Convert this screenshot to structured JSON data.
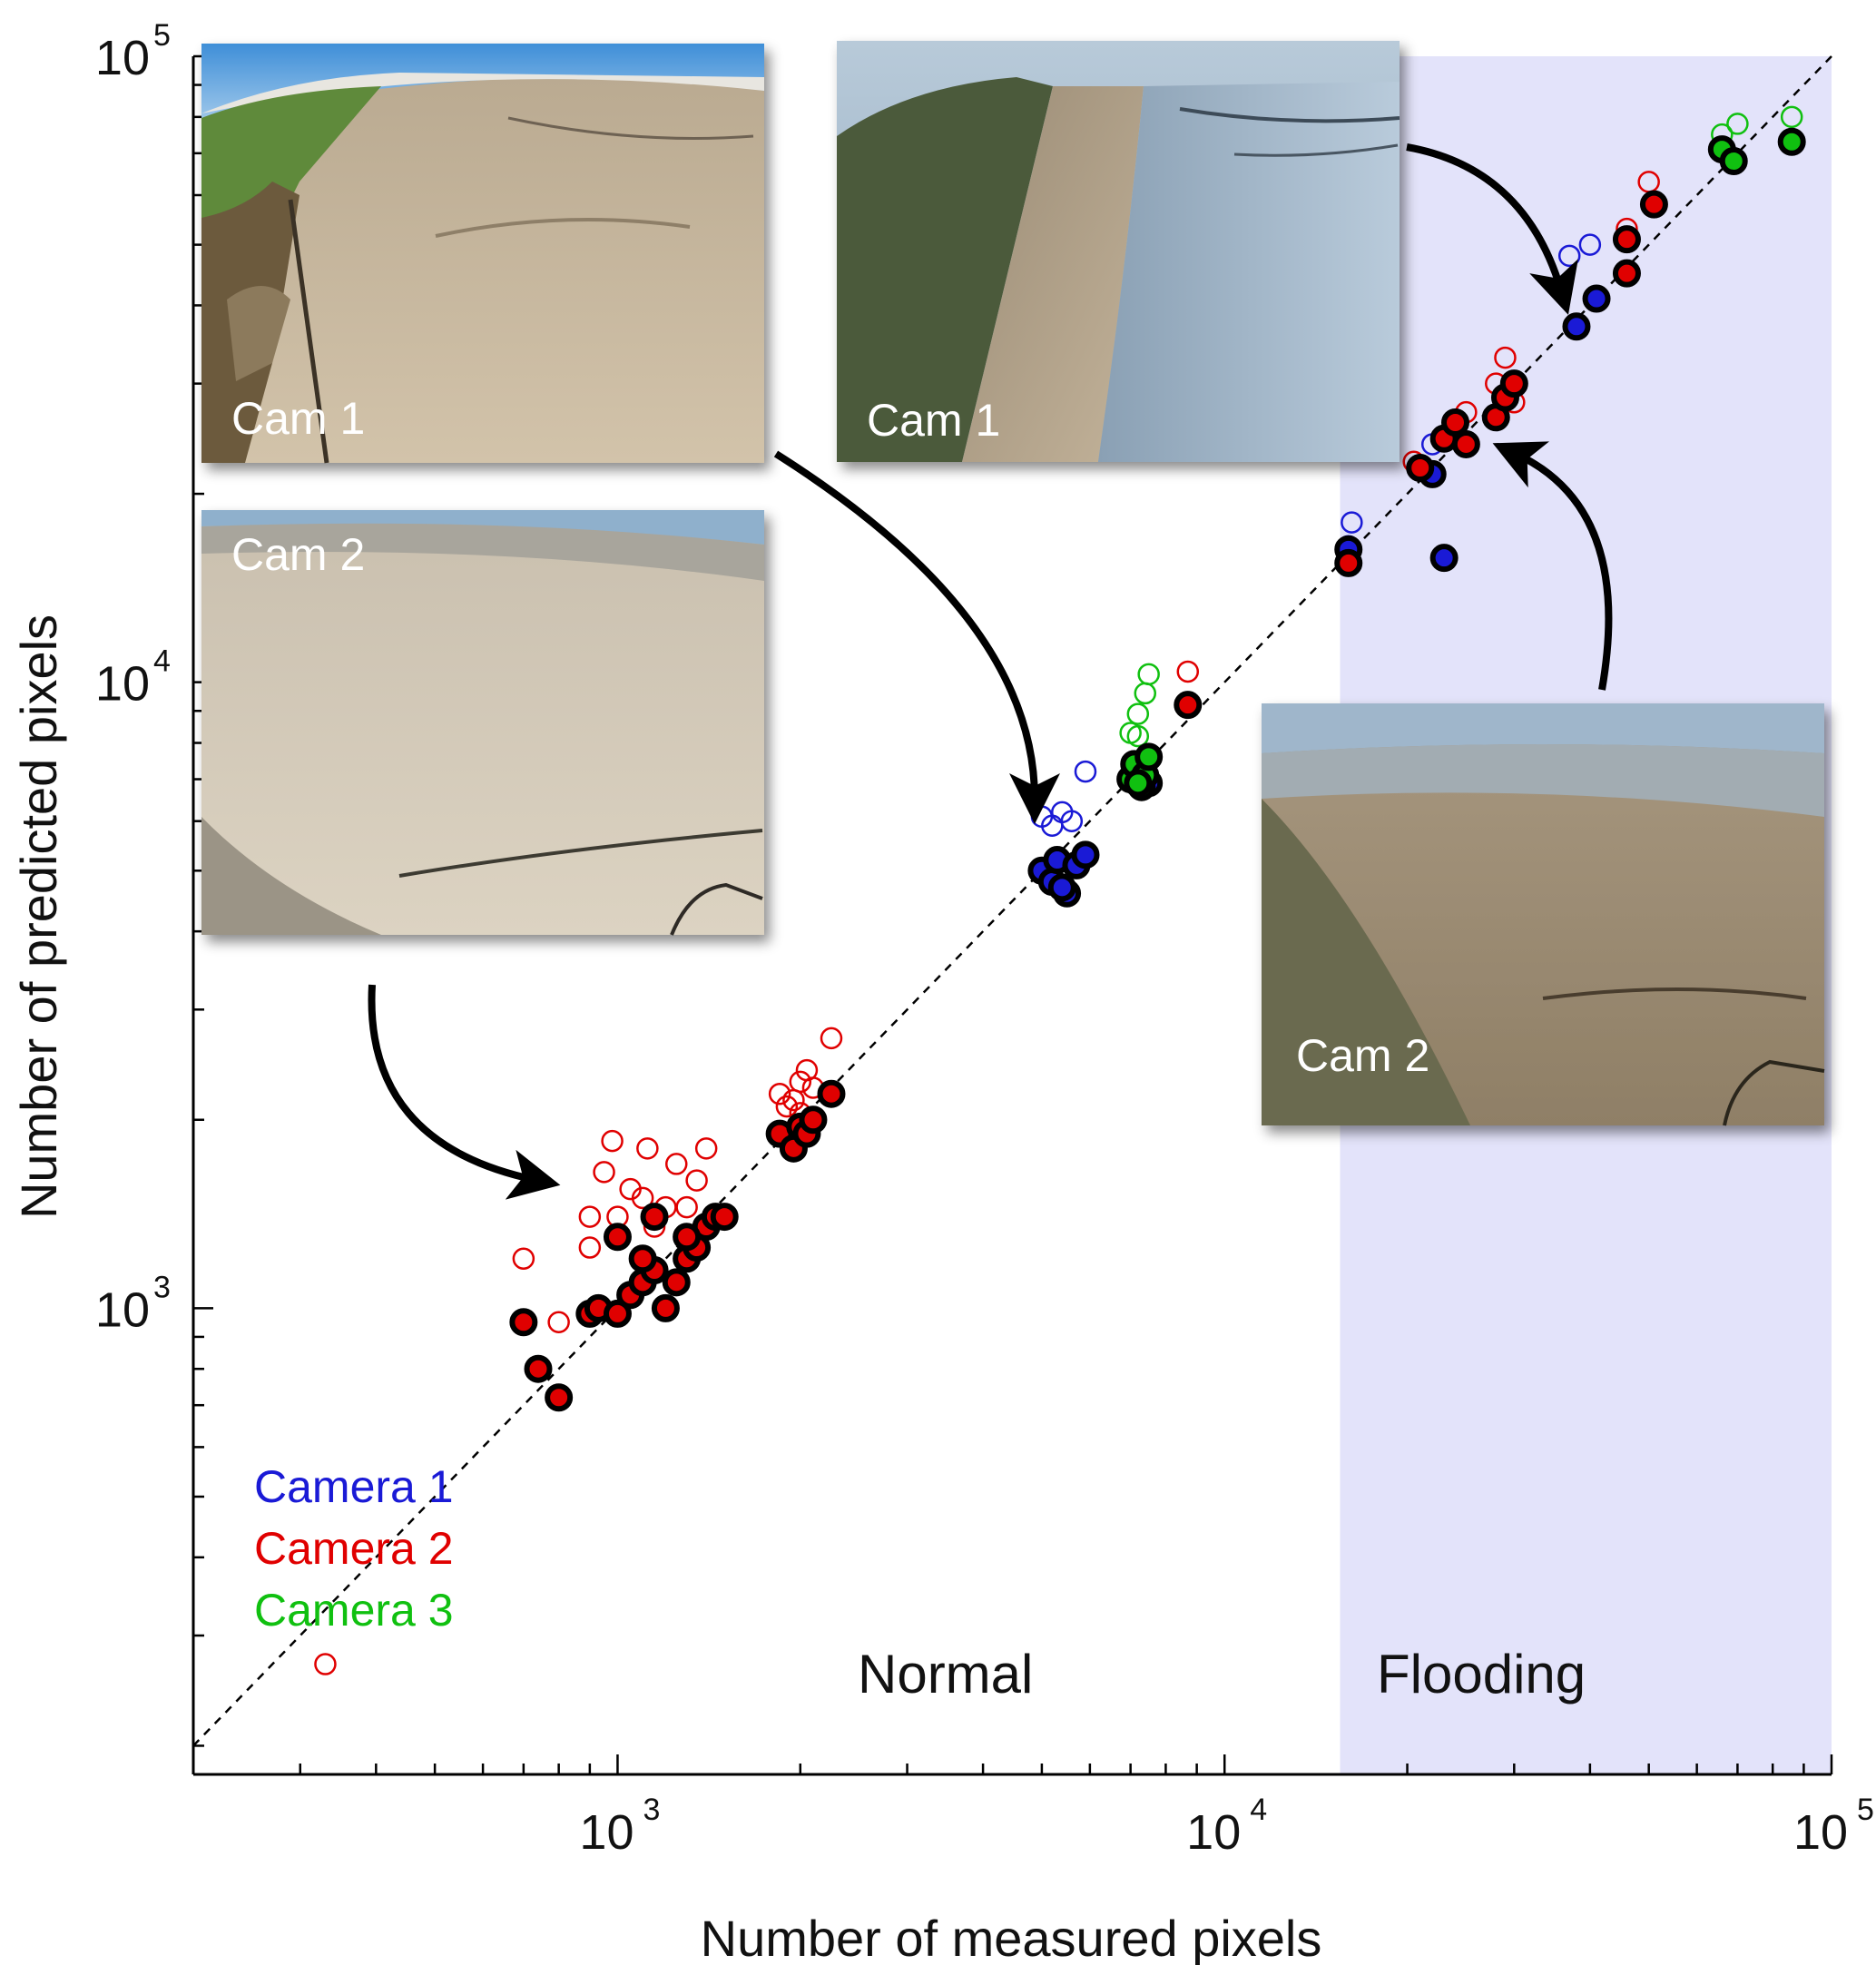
{
  "chart_data": {
    "type": "scatter",
    "xscale": "log",
    "yscale": "log",
    "xlim": [
      200,
      100000
    ],
    "ylim": [
      180,
      100000
    ],
    "xlabel": "Number of measured pixels",
    "ylabel": "Number of predicted pixels",
    "x_ticks": [
      {
        "base": "10",
        "exp": "3",
        "value": 1000
      },
      {
        "base": "10",
        "exp": "4",
        "value": 10000
      },
      {
        "base": "10",
        "exp": "5",
        "value": 100000
      }
    ],
    "y_ticks": [
      {
        "base": "10",
        "exp": "3",
        "value": 1000
      },
      {
        "base": "10",
        "exp": "4",
        "value": 10000
      },
      {
        "base": "10",
        "exp": "5",
        "value": 100000
      }
    ],
    "reference_line": "1:1 dashed",
    "flooding_region_start": 15500,
    "region_labels": {
      "normal": "Normal",
      "flooding": "Flooding"
    },
    "legend": [
      {
        "label": "Camera 1",
        "color": "#1a1ad6"
      },
      {
        "label": "Camera 2",
        "color": "#e00000"
      },
      {
        "label": "Camera 3",
        "color": "#10c010"
      }
    ],
    "series": [
      {
        "name": "Camera 1",
        "color": "#1a1ad6",
        "open": [
          [
            5000,
            6100
          ],
          [
            5200,
            5900
          ],
          [
            5400,
            6200
          ],
          [
            5600,
            6000
          ],
          [
            5900,
            7200
          ],
          [
            16200,
            18000
          ],
          [
            16000,
            16500
          ],
          [
            22000,
            24000
          ],
          [
            37000,
            48000
          ],
          [
            40000,
            50000
          ]
        ],
        "filled": [
          [
            5000,
            5000
          ],
          [
            5200,
            4800
          ],
          [
            5300,
            5200
          ],
          [
            5500,
            4600
          ],
          [
            5700,
            5100
          ],
          [
            5900,
            5300
          ],
          [
            5400,
            4700
          ],
          [
            7500,
            6900
          ],
          [
            16000,
            16300
          ],
          [
            22000,
            21500
          ],
          [
            23000,
            15800
          ],
          [
            38000,
            37000
          ],
          [
            41000,
            41000
          ]
        ]
      },
      {
        "name": "Camera 2",
        "color": "#e00000",
        "open": [
          [
            330,
            270
          ],
          [
            700,
            1200
          ],
          [
            800,
            950
          ],
          [
            900,
            1400
          ],
          [
            950,
            1650
          ],
          [
            980,
            1850
          ],
          [
            1000,
            1400
          ],
          [
            1050,
            1550
          ],
          [
            1100,
            1500
          ],
          [
            1120,
            1800
          ],
          [
            1200,
            1450
          ],
          [
            1250,
            1700
          ],
          [
            1300,
            1450
          ],
          [
            1350,
            1600
          ],
          [
            900,
            1250
          ],
          [
            1000,
            1300
          ],
          [
            1150,
            1350
          ],
          [
            1400,
            1800
          ],
          [
            1850,
            2200
          ],
          [
            1950,
            2150
          ],
          [
            2000,
            2300
          ],
          [
            2050,
            2400
          ],
          [
            2100,
            2250
          ],
          [
            1900,
            2100
          ],
          [
            2000,
            2050
          ],
          [
            2250,
            2700
          ],
          [
            8700,
            10400
          ],
          [
            20500,
            22500
          ],
          [
            24000,
            26000
          ],
          [
            25000,
            27000
          ],
          [
            28000,
            30000
          ],
          [
            30000,
            28000
          ],
          [
            29000,
            33000
          ],
          [
            46000,
            53000
          ],
          [
            50000,
            63000
          ]
        ],
        "filled": [
          [
            700,
            950
          ],
          [
            740,
            800
          ],
          [
            800,
            720
          ],
          [
            900,
            980
          ],
          [
            930,
            1000
          ],
          [
            1000,
            980
          ],
          [
            1050,
            1050
          ],
          [
            1100,
            1100
          ],
          [
            1150,
            1150
          ],
          [
            1100,
            1200
          ],
          [
            1000,
            1300
          ],
          [
            1150,
            1400
          ],
          [
            1200,
            1000
          ],
          [
            1250,
            1100
          ],
          [
            1300,
            1200
          ],
          [
            1350,
            1250
          ],
          [
            1400,
            1350
          ],
          [
            1300,
            1300
          ],
          [
            1450,
            1400
          ],
          [
            1500,
            1400
          ],
          [
            1850,
            1900
          ],
          [
            1950,
            1800
          ],
          [
            2000,
            1950
          ],
          [
            2050,
            1900
          ],
          [
            2100,
            2000
          ],
          [
            2250,
            2200
          ],
          [
            8700,
            9200
          ],
          [
            16000,
            15500
          ],
          [
            21000,
            22000
          ],
          [
            23000,
            24500
          ],
          [
            24000,
            26000
          ],
          [
            25000,
            24000
          ],
          [
            28000,
            26500
          ],
          [
            29000,
            28500
          ],
          [
            30000,
            30000
          ],
          [
            46000,
            45000
          ],
          [
            46000,
            51000
          ],
          [
            51000,
            58000
          ]
        ]
      },
      {
        "name": "Camera 3",
        "color": "#10c010",
        "open": [
          [
            7000,
            8300
          ],
          [
            7200,
            8900
          ],
          [
            7400,
            9600
          ],
          [
            7500,
            10300
          ],
          [
            7200,
            8200
          ],
          [
            7000,
            7000
          ],
          [
            66000,
            75000
          ],
          [
            70000,
            78000
          ],
          [
            86000,
            80000
          ]
        ],
        "filled": [
          [
            7000,
            7000
          ],
          [
            7100,
            7400
          ],
          [
            7300,
            6800
          ],
          [
            7400,
            7100
          ],
          [
            7500,
            7600
          ],
          [
            7200,
            6900
          ],
          [
            66000,
            71000
          ],
          [
            69000,
            68000
          ],
          [
            86000,
            73000
          ]
        ]
      }
    ]
  },
  "photos": [
    {
      "caption": "Cam 1"
    },
    {
      "caption": "Cam 1"
    },
    {
      "caption": "Cam 2"
    },
    {
      "caption": "Cam 2"
    }
  ]
}
